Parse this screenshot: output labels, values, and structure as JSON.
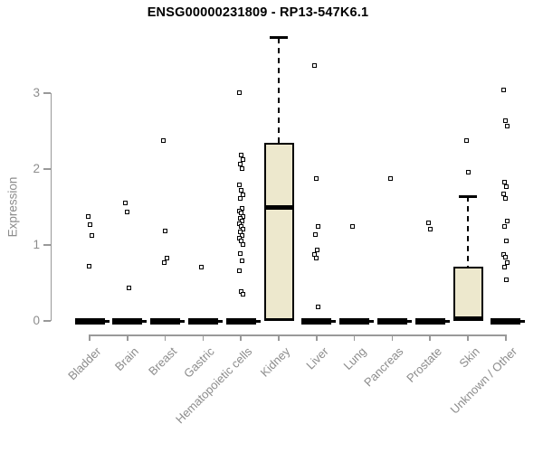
{
  "title": "ENSG00000231809 - RP13-547K6.1",
  "chart_data": {
    "type": "boxplot",
    "title": "ENSG00000231809 - RP13-547K6.1",
    "xlabel": "",
    "ylabel": "Expression",
    "ylim": [
      0,
      3.8
    ],
    "yticks": [
      0,
      1,
      2,
      3
    ],
    "grid": false,
    "legend": "none",
    "colors": {
      "box_fill": "#ede8cd",
      "box_stroke": "#000000",
      "axis": "#999999",
      "tick_label": "#8c8c8c",
      "title": "#000000",
      "outlier_fill": "#ffffff"
    },
    "categories": [
      "Bladder",
      "Brain",
      "Breast",
      "Gastric",
      "Hematopoietic cells",
      "Kidney",
      "Liver",
      "Lung",
      "Pancreas",
      "Prostate",
      "Skin",
      "Unknown / Other"
    ],
    "boxes": [
      {
        "category": "Bladder",
        "q1": 0,
        "median": 0,
        "q3": 0,
        "whisker_low": 0,
        "whisker_high": 0,
        "outliers": [
          1.37,
          1.27,
          1.13,
          0.72
        ]
      },
      {
        "category": "Brain",
        "q1": 0,
        "median": 0,
        "q3": 0,
        "whisker_low": 0,
        "whisker_high": 0,
        "outliers": [
          1.55,
          1.44,
          0.44
        ]
      },
      {
        "category": "Breast",
        "q1": 0,
        "median": 0,
        "q3": 0,
        "whisker_low": 0,
        "whisker_high": 0,
        "outliers": [
          2.38,
          1.19,
          0.83,
          0.77
        ]
      },
      {
        "category": "Gastric",
        "q1": 0,
        "median": 0,
        "q3": 0,
        "whisker_low": 0,
        "whisker_high": 0,
        "outliers": [
          0.71
        ]
      },
      {
        "category": "Hematopoietic cells",
        "q1": 0,
        "median": 0,
        "q3": 0,
        "whisker_low": 0,
        "whisker_high": 0,
        "outliers": [
          3.01,
          2.18,
          2.12,
          2.06,
          2.01,
          1.79,
          1.72,
          1.66,
          1.61,
          1.48,
          1.45,
          1.42,
          1.38,
          1.35,
          1.31,
          1.28,
          1.24,
          1.21,
          1.17,
          1.13,
          1.09,
          1.05,
          1.01,
          0.89,
          0.79,
          0.66,
          0.39,
          0.35
        ]
      },
      {
        "category": "Kidney",
        "q1": 0,
        "median": 1.49,
        "q3": 2.35,
        "whisker_low": 0,
        "whisker_high": 3.73,
        "outliers": []
      },
      {
        "category": "Liver",
        "q1": 0,
        "median": 0,
        "q3": 0,
        "whisker_low": 0,
        "whisker_high": 0,
        "outliers": [
          3.36,
          1.87,
          1.25,
          1.14,
          0.93,
          0.88,
          0.83,
          0.19
        ]
      },
      {
        "category": "Lung",
        "q1": 0,
        "median": 0,
        "q3": 0,
        "whisker_low": 0,
        "whisker_high": 0,
        "outliers": [
          1.24
        ]
      },
      {
        "category": "Pancreas",
        "q1": 0,
        "median": 0,
        "q3": 0,
        "whisker_low": 0,
        "whisker_high": 0,
        "outliers": [
          1.87
        ]
      },
      {
        "category": "Prostate",
        "q1": 0,
        "median": 0,
        "q3": 0,
        "whisker_low": 0,
        "whisker_high": 0,
        "outliers": [
          1.29,
          1.21
        ]
      },
      {
        "category": "Skin",
        "q1": 0,
        "median": 0,
        "q3": 0.71,
        "whisker_low": 0,
        "whisker_high": 1.64,
        "outliers": [
          2.38,
          1.96
        ]
      },
      {
        "category": "Unknown / Other",
        "q1": 0,
        "median": 0,
        "q3": 0,
        "whisker_low": 0,
        "whisker_high": 0,
        "outliers": [
          3.04,
          2.64,
          2.57,
          1.83,
          1.77,
          1.67,
          1.61,
          1.31,
          1.25,
          1.05,
          0.87,
          0.84,
          0.77,
          0.71,
          0.54
        ]
      }
    ]
  }
}
